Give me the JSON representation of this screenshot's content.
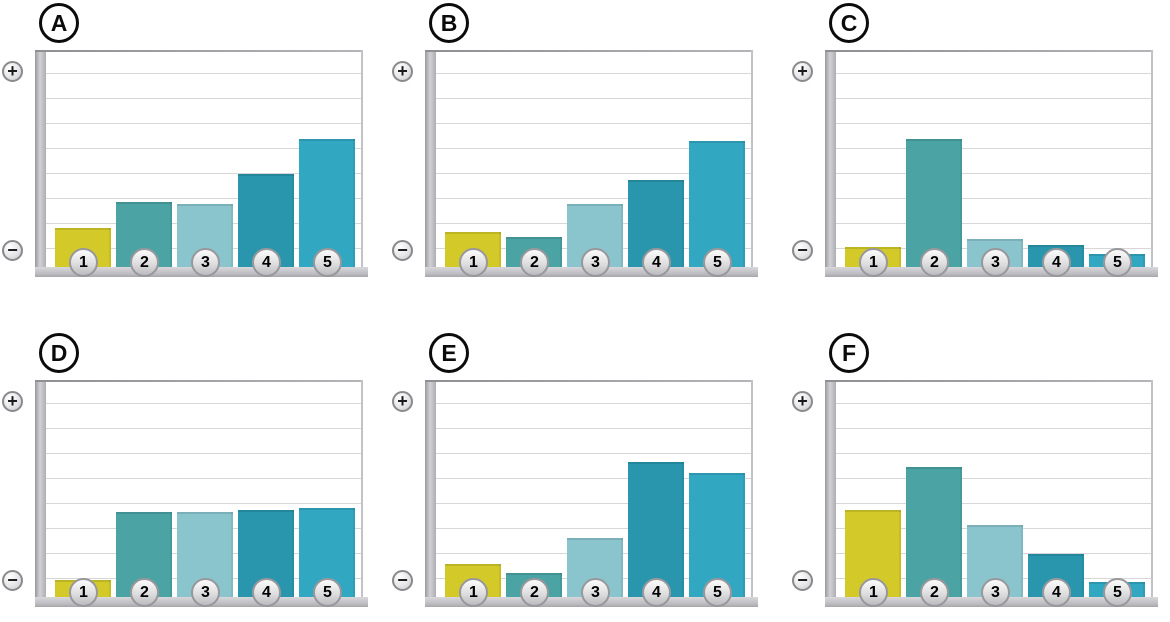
{
  "figure": {
    "y_axis": {
      "plus_label": "+",
      "minus_label": "−"
    }
  },
  "style": {
    "bar_colors": [
      "#d3c929",
      "#4ba3a4",
      "#8ac5cd",
      "#2996ad",
      "#31a7c2"
    ],
    "gridline_count": 8,
    "axis_color": "#b5b5b9",
    "letter_circle_color": "#0b0b0b",
    "badge_fill": "#d9d9db"
  },
  "chart_data": [
    {
      "type": "bar",
      "title": "A",
      "categories": [
        "1",
        "2",
        "3",
        "4",
        "5"
      ],
      "values": [
        0.18,
        0.3,
        0.29,
        0.43,
        0.59
      ],
      "xlabel": "",
      "ylabel": "",
      "ylim": [
        0,
        1
      ],
      "y_axis_top_label": "+",
      "y_axis_bottom_label": "−",
      "grid": true,
      "legend": false
    },
    {
      "type": "bar",
      "title": "B",
      "categories": [
        "1",
        "2",
        "3",
        "4",
        "5"
      ],
      "values": [
        0.16,
        0.14,
        0.29,
        0.4,
        0.58
      ],
      "xlabel": "",
      "ylabel": "",
      "ylim": [
        0,
        1
      ],
      "y_axis_top_label": "+",
      "y_axis_bottom_label": "−",
      "grid": true,
      "legend": false
    },
    {
      "type": "bar",
      "title": "C",
      "categories": [
        "1",
        "2",
        "3",
        "4",
        "5"
      ],
      "values": [
        0.09,
        0.59,
        0.13,
        0.1,
        0.06
      ],
      "xlabel": "",
      "ylabel": "",
      "ylim": [
        0,
        1
      ],
      "y_axis_top_label": "+",
      "y_axis_bottom_label": "−",
      "grid": true,
      "legend": false
    },
    {
      "type": "bar",
      "title": "D",
      "categories": [
        "1",
        "2",
        "3",
        "4",
        "5"
      ],
      "values": [
        0.08,
        0.39,
        0.39,
        0.4,
        0.41
      ],
      "xlabel": "",
      "ylabel": "",
      "ylim": [
        0,
        1
      ],
      "y_axis_top_label": "+",
      "y_axis_bottom_label": "−",
      "grid": true,
      "legend": false
    },
    {
      "type": "bar",
      "title": "E",
      "categories": [
        "1",
        "2",
        "3",
        "4",
        "5"
      ],
      "values": [
        0.15,
        0.11,
        0.27,
        0.62,
        0.57
      ],
      "xlabel": "",
      "ylabel": "",
      "ylim": [
        0,
        1
      ],
      "y_axis_top_label": "+",
      "y_axis_bottom_label": "−",
      "grid": true,
      "legend": false
    },
    {
      "type": "bar",
      "title": "F",
      "categories": [
        "1",
        "2",
        "3",
        "4",
        "5"
      ],
      "values": [
        0.4,
        0.6,
        0.33,
        0.2,
        0.07
      ],
      "xlabel": "",
      "ylabel": "",
      "ylim": [
        0,
        1
      ],
      "y_axis_top_label": "+",
      "y_axis_bottom_label": "−",
      "grid": true,
      "legend": false
    }
  ]
}
